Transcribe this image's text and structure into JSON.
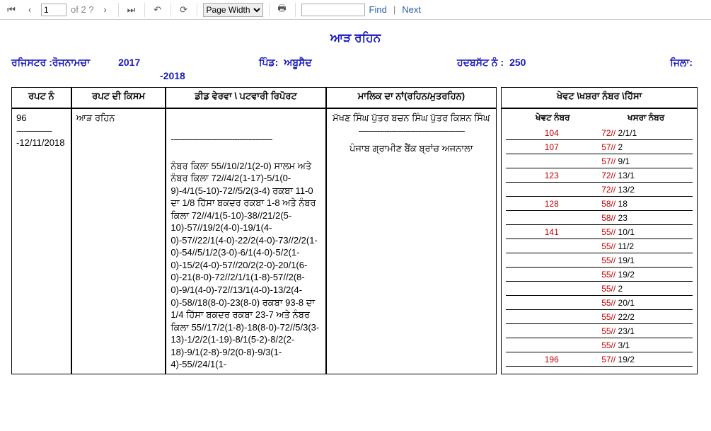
{
  "toolbar": {
    "page_value": "1",
    "of_label": "of 2 ?",
    "zoom_selected": "Page Width",
    "find_placeholder": "",
    "find_label": "Find",
    "next_label": "Next"
  },
  "header": {
    "title": "ਆੜ ਰਹਿਨ",
    "register_label": "ਰਜਿਸਟਰ :ਰੋਜਨਾਮਚਾ",
    "year1": "2017",
    "year2": "-2018",
    "pind_label": "ਪਿੰਡ:",
    "pind_value": "ਅਬੂਸੈਦ",
    "hadbast_label": "ਹਦਬਸੱਟ ਨੰ :",
    "hadbast_value": "250",
    "zila_label": "ਜਿਲਾ:"
  },
  "columns": {
    "c1": "ਰਪਟ ਨੰ",
    "c2": "ਰਪਟ ਦੀ ਕਿਸਮ",
    "c3": "ਡੀਡ ਵੇਰਵਾ \\ ਪਟਵਾਰੀ ਰਿਪੋਰਟ",
    "c4": "ਮਾਲਿਕ ਦਾ ਨਾਂ(ਰਹਿਨ/ਮੁਤਰਹਿਨ)",
    "c5": "ਖੇਵਟ \\ਖਸ਼ਰਾ ਨੰਬਰ \\ਹਿੱਸਾ"
  },
  "row": {
    "rapat_no": "96",
    "rapat_date": "-12/11/2018",
    "rapat_kisam": "ਆੜ ਰਹਿਨ",
    "deed_dashes": "-------------------------------------------",
    "deed_body": "ਨੰਬਰ ਕਿਲਾ 55//10/2/1(2-0) ਸਾਲਮ ਅਤੇ ਨੰਬਰ ਕਿਲਾ 72//4/2(1-17)-5/1(0-9)-4/1(5-10)-72//5/2(3-4) ਰਕਬਾ 11-0 ਦਾ 1/8 ਹਿੱਸਾ ਬਕਦਰ ਰਕਬਾ 1-8 ਅਤੇ ਨੰਬਰ ਕਿਲਾ 72//4/1(5-10)-38//21/2(5-10)-57//19/2(4-0)-19/1(4-0)-57//22/1(4-0)-22/2(4-0)-73//2/2(1-0)-54//5/1/2(3-0)-6/1(4-0)-5/2(1-0)-15/2(4-0)-57//20/2(2-0)-20/1(6-0)-21(8-0)-72//2/1/1(1-8)-57//2(8-0)-9/1(4-0)-72//13/1(4-0)-13/2(4-0)-58//18(8-0)-23(8-0) ਰਕਬਾ 93-8 ਦਾ 1/4 ਹਿੱਸਾ ਬਕਦਰ ਰਕਬਾ 23-7 ਅਤੇ ਨੰਬਰ ਕਿਲਾ 55//17/2(1-8)-18(8-0)-72//5/3(3-13)-1/2/2(1-19)-8/1(5-2)-8/2(2-18)-9/1(2-8)-9/2(0-8)-9/3(1-4)-55//24/1(1-",
    "malik_line1": "ਮੱਖਣ ਸਿੰਘ ਪੁੱਤਰ ਬਚਨ ਸਿੰਘ ਪੁੱਤਰ  ਕਿਸ਼ਨ ਸਿੰਘ",
    "malik_dashes": "---------------------------------------------",
    "malik_line2": "ਪੰਜਾਬ ਗ੍ਰਾਮੀਣ ਬੈਂਕ ਬ੍ਰਾਂਚ ਅਜਨਾਲਾ"
  },
  "sub_headers": {
    "khewat": "ਖੇਵਟ ਨੰਬਰ",
    "khasra": "ਖਸਰਾ ਨੰਬਰ"
  },
  "kv": [
    {
      "a": "104",
      "b_red": "72//",
      "b": " 2/1/1"
    },
    {
      "a": "107",
      "b_red": "57//",
      "b": " 2"
    },
    {
      "a": "",
      "b_red": "57//",
      "b": " 9/1"
    },
    {
      "a": "123",
      "b_red": "72//",
      "b": " 13/1"
    },
    {
      "a": "",
      "b_red": "72//",
      "b": " 13/2"
    },
    {
      "a": "128",
      "b_red": "58//",
      "b": " 18"
    },
    {
      "a": "",
      "b_red": "58//",
      "b": " 23"
    },
    {
      "a": "141",
      "b_red": "55//",
      "b": " 10/1"
    },
    {
      "a": "",
      "b_red": "55//",
      "b": " 11/2"
    },
    {
      "a": "",
      "b_red": "55//",
      "b": " 19/1"
    },
    {
      "a": "",
      "b_red": "55//",
      "b": " 19/2"
    },
    {
      "a": "",
      "b_red": "55//",
      "b": " 2"
    },
    {
      "a": "",
      "b_red": "55//",
      "b": " 20/1"
    },
    {
      "a": "",
      "b_red": "55//",
      "b": " 22/2"
    },
    {
      "a": "",
      "b_red": "55//",
      "b": " 23/1"
    },
    {
      "a": "",
      "b_red": "55//",
      "b": " 3/1"
    },
    {
      "a": "196",
      "b_red": "57//",
      "b": " 19/2"
    }
  ]
}
